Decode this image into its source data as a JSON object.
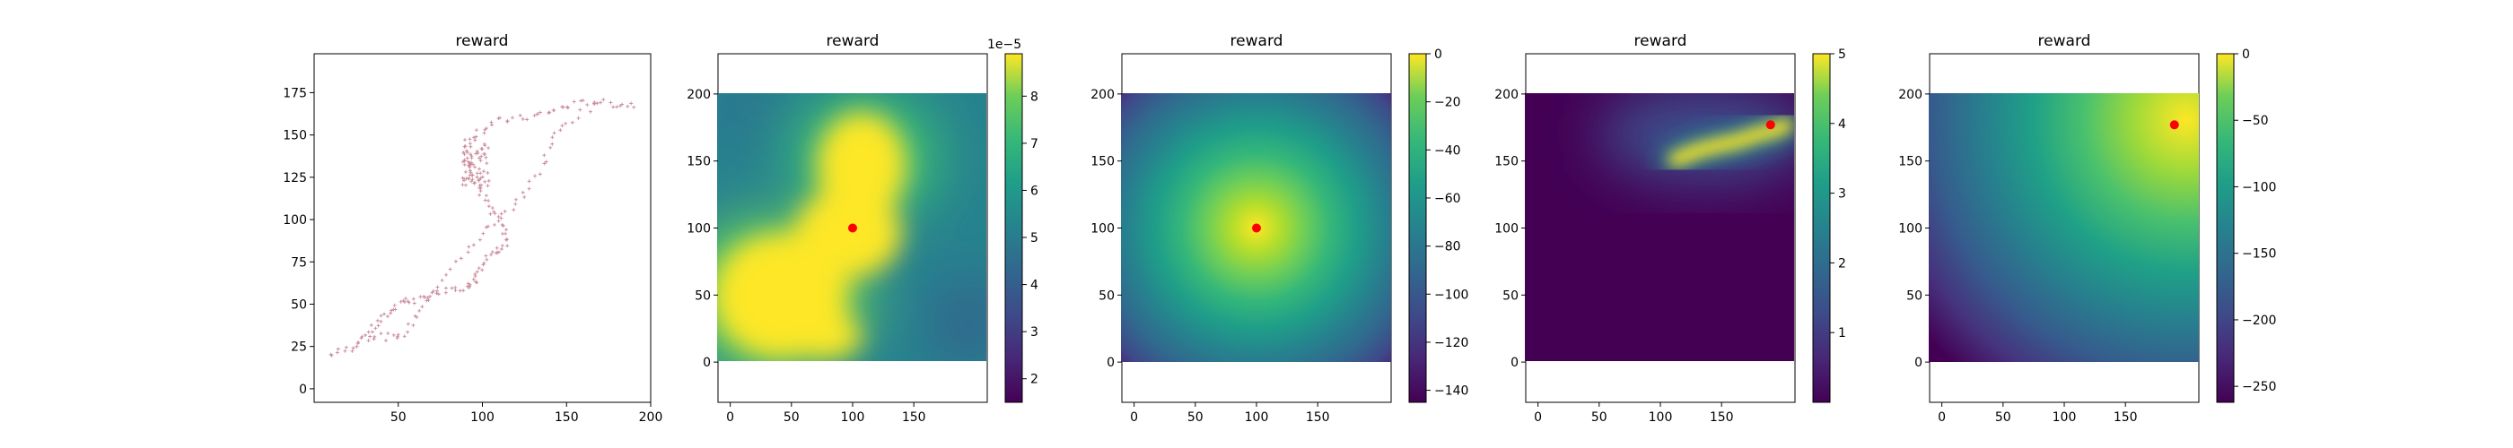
{
  "chart_data": [
    {
      "type": "scatter",
      "title": "reward",
      "xlabel": "",
      "ylabel": "",
      "xlim": [
        0,
        200
      ],
      "ylim": [
        -8,
        198
      ],
      "xticks": [
        "50",
        "100",
        "150",
        "200"
      ],
      "yticks": [
        "0",
        "25",
        "50",
        "75",
        "100",
        "125",
        "150",
        "175"
      ],
      "marker_color": "#c98a9a",
      "path": [
        [
          10,
          20
        ],
        [
          22,
          24
        ],
        [
          30,
          31
        ],
        [
          38,
          38
        ],
        [
          45,
          45
        ],
        [
          52,
          52
        ],
        [
          60,
          52
        ],
        [
          70,
          55
        ],
        [
          82,
          58
        ],
        [
          92,
          60
        ],
        [
          96,
          65
        ],
        [
          100,
          75
        ],
        [
          108,
          80
        ],
        [
          115,
          85
        ],
        [
          112,
          95
        ],
        [
          105,
          105
        ],
        [
          100,
          115
        ],
        [
          95,
          125
        ],
        [
          92,
          135
        ],
        [
          90,
          145
        ],
        [
          98,
          152
        ],
        [
          108,
          158
        ],
        [
          125,
          160
        ],
        [
          138,
          163
        ],
        [
          150,
          167
        ],
        [
          165,
          170
        ],
        [
          180,
          168
        ],
        [
          192,
          168
        ]
      ],
      "branch": [
        [
          30,
          30
        ],
        [
          40,
          32
        ],
        [
          48,
          29
        ],
        [
          55,
          34
        ],
        [
          62,
          44
        ],
        [
          70,
          55
        ],
        [
          80,
          68
        ],
        [
          90,
          80
        ],
        [
          100,
          92
        ],
        [
          110,
          100
        ],
        [
          120,
          110
        ],
        [
          128,
          118
        ],
        [
          135,
          132
        ],
        [
          140,
          145
        ],
        [
          148,
          155
        ],
        [
          160,
          163
        ],
        [
          175,
          170
        ]
      ]
    },
    {
      "type": "heatmap",
      "title": "reward",
      "xlim": [
        -10,
        210
      ],
      "ylim": [
        -30,
        230
      ],
      "xticks": [
        "0",
        "50",
        "100",
        "150"
      ],
      "yticks": [
        "0",
        "50",
        "100",
        "150",
        "200"
      ],
      "colorbar": {
        "min": 1.5,
        "max": 8.9,
        "ticks": [
          "2",
          "3",
          "4",
          "5",
          "6",
          "7",
          "8"
        ],
        "offset_text": "1e−5"
      },
      "marker": {
        "x": 100,
        "y": 100,
        "color": "#ff0000"
      }
    },
    {
      "type": "heatmap",
      "title": "reward",
      "xlim": [
        -10,
        210
      ],
      "ylim": [
        -30,
        230
      ],
      "xticks": [
        "0",
        "50",
        "100",
        "150"
      ],
      "yticks": [
        "0",
        "50",
        "100",
        "150",
        "200"
      ],
      "colorbar": {
        "min": -145,
        "max": 0,
        "ticks": [
          "0",
          "−20",
          "−40",
          "−60",
          "−80",
          "−100",
          "−120",
          "−140"
        ]
      },
      "marker": {
        "x": 100,
        "y": 100,
        "color": "#ff0000"
      }
    },
    {
      "type": "heatmap",
      "title": "reward",
      "xlim": [
        -10,
        210
      ],
      "ylim": [
        -30,
        230
      ],
      "xticks": [
        "0",
        "50",
        "100",
        "150"
      ],
      "yticks": [
        "0",
        "50",
        "100",
        "150",
        "200"
      ],
      "colorbar": {
        "min": 0,
        "max": 5,
        "ticks": [
          "1",
          "2",
          "3",
          "4",
          "5"
        ]
      },
      "marker": {
        "x": 190,
        "y": 177,
        "color": "#ff0000"
      }
    },
    {
      "type": "heatmap",
      "title": "reward",
      "xlim": [
        -10,
        210
      ],
      "ylim": [
        -30,
        230
      ],
      "xticks": [
        "0",
        "50",
        "100",
        "150"
      ],
      "yticks": [
        "0",
        "50",
        "100",
        "150",
        "200"
      ],
      "colorbar": {
        "min": -262,
        "max": 0,
        "ticks": [
          "0",
          "−50",
          "−100",
          "−150",
          "−200",
          "−250"
        ]
      },
      "marker": {
        "x": 190,
        "y": 177,
        "color": "#ff0000"
      }
    }
  ]
}
